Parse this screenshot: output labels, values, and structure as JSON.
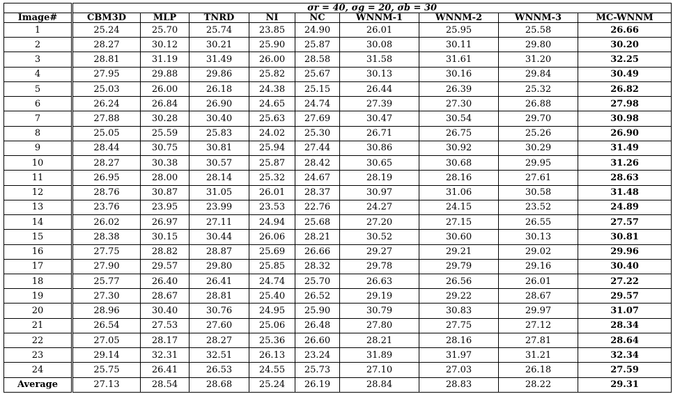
{
  "table": {
    "group_header": "σr = 40, σg = 20, σb = 30",
    "columns": [
      "Image#",
      "CBM3D",
      "MLP",
      "TNRD",
      "NI",
      "NC",
      "WNNM-1",
      "WNNM-2",
      "WNNM-3",
      "MC-WNNM"
    ],
    "rows": [
      [
        "1",
        "25.24",
        "25.70",
        "25.74",
        "23.85",
        "24.90",
        "26.01",
        "25.95",
        "25.58",
        "26.66"
      ],
      [
        "2",
        "28.27",
        "30.12",
        "30.21",
        "25.90",
        "25.87",
        "30.08",
        "30.11",
        "29.80",
        "30.20"
      ],
      [
        "3",
        "28.81",
        "31.19",
        "31.49",
        "26.00",
        "28.58",
        "31.58",
        "31.61",
        "31.20",
        "32.25"
      ],
      [
        "4",
        "27.95",
        "29.88",
        "29.86",
        "25.82",
        "25.67",
        "30.13",
        "30.16",
        "29.84",
        "30.49"
      ],
      [
        "5",
        "25.03",
        "26.00",
        "26.18",
        "24.38",
        "25.15",
        "26.44",
        "26.39",
        "25.32",
        "26.82"
      ],
      [
        "6",
        "26.24",
        "26.84",
        "26.90",
        "24.65",
        "24.74",
        "27.39",
        "27.30",
        "26.88",
        "27.98"
      ],
      [
        "7",
        "27.88",
        "30.28",
        "30.40",
        "25.63",
        "27.69",
        "30.47",
        "30.54",
        "29.70",
        "30.98"
      ],
      [
        "8",
        "25.05",
        "25.59",
        "25.83",
        "24.02",
        "25.30",
        "26.71",
        "26.75",
        "25.26",
        "26.90"
      ],
      [
        "9",
        "28.44",
        "30.75",
        "30.81",
        "25.94",
        "27.44",
        "30.86",
        "30.92",
        "30.29",
        "31.49"
      ],
      [
        "10",
        "28.27",
        "30.38",
        "30.57",
        "25.87",
        "28.42",
        "30.65",
        "30.68",
        "29.95",
        "31.26"
      ],
      [
        "11",
        "26.95",
        "28.00",
        "28.14",
        "25.32",
        "24.67",
        "28.19",
        "28.16",
        "27.61",
        "28.63"
      ],
      [
        "12",
        "28.76",
        "30.87",
        "31.05",
        "26.01",
        "28.37",
        "30.97",
        "31.06",
        "30.58",
        "31.48"
      ],
      [
        "13",
        "23.76",
        "23.95",
        "23.99",
        "23.53",
        "22.76",
        "24.27",
        "24.15",
        "23.52",
        "24.89"
      ],
      [
        "14",
        "26.02",
        "26.97",
        "27.11",
        "24.94",
        "25.68",
        "27.20",
        "27.15",
        "26.55",
        "27.57"
      ],
      [
        "15",
        "28.38",
        "30.15",
        "30.44",
        "26.06",
        "28.21",
        "30.52",
        "30.60",
        "30.13",
        "30.81"
      ],
      [
        "16",
        "27.75",
        "28.82",
        "28.87",
        "25.69",
        "26.66",
        "29.27",
        "29.21",
        "29.02",
        "29.96"
      ],
      [
        "17",
        "27.90",
        "29.57",
        "29.80",
        "25.85",
        "28.32",
        "29.78",
        "29.79",
        "29.16",
        "30.40"
      ],
      [
        "18",
        "25.77",
        "26.40",
        "26.41",
        "24.74",
        "25.70",
        "26.63",
        "26.56",
        "26.01",
        "27.22"
      ],
      [
        "19",
        "27.30",
        "28.67",
        "28.81",
        "25.40",
        "26.52",
        "29.19",
        "29.22",
        "28.67",
        "29.57"
      ],
      [
        "20",
        "28.96",
        "30.40",
        "30.76",
        "24.95",
        "25.90",
        "30.79",
        "30.83",
        "29.97",
        "31.07"
      ],
      [
        "21",
        "26.54",
        "27.53",
        "27.60",
        "25.06",
        "26.48",
        "27.80",
        "27.75",
        "27.12",
        "28.34"
      ],
      [
        "22",
        "27.05",
        "28.17",
        "28.27",
        "25.36",
        "26.60",
        "28.21",
        "28.16",
        "27.81",
        "28.64"
      ],
      [
        "23",
        "29.14",
        "32.31",
        "32.51",
        "26.13",
        "23.24",
        "31.89",
        "31.97",
        "31.21",
        "32.34"
      ],
      [
        "24",
        "25.75",
        "26.41",
        "26.53",
        "24.55",
        "25.73",
        "27.10",
        "27.03",
        "26.18",
        "27.59"
      ]
    ],
    "average": [
      "Average",
      "27.13",
      "28.54",
      "28.68",
      "25.24",
      "26.19",
      "28.84",
      "28.83",
      "28.22",
      "29.31"
    ]
  }
}
